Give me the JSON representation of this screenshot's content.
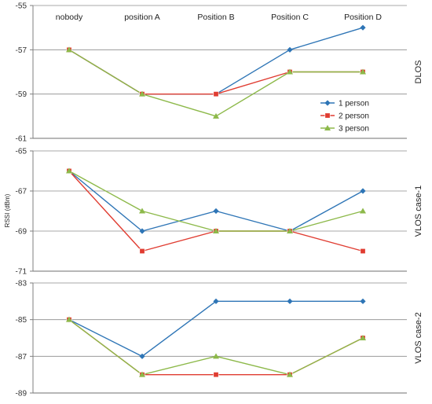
{
  "chart_data": {
    "type": "line",
    "categories": [
      "nobody",
      "position A",
      "Position B",
      "Position C",
      "Position D"
    ],
    "ylabel": "RSSI (dBm)",
    "legend": {
      "placement": "inside-top-right-of-first-panel",
      "entries": [
        "1 person",
        "2 person",
        "3 person"
      ]
    },
    "colors": {
      "1 person": "#2e75b6",
      "2 person": "#e03c31",
      "3 person": "#8db94a",
      "gridline": "#8c8c8c",
      "axis": "#7f7f7f"
    },
    "panels": [
      {
        "label": "DLOS",
        "ylim": [
          -61,
          -55
        ],
        "yticks": [
          -55,
          -57,
          -59,
          -61
        ],
        "series": [
          {
            "name": "1 person",
            "marker": "diamond",
            "values": [
              -57,
              -59,
              -59,
              -57,
              -56
            ]
          },
          {
            "name": "2 person",
            "marker": "square",
            "values": [
              -57,
              -59,
              -59,
              -58,
              -58
            ]
          },
          {
            "name": "3 person",
            "marker": "triangle",
            "values": [
              -57,
              -59,
              -60,
              -58,
              -58
            ]
          }
        ]
      },
      {
        "label": "VLOS case-1",
        "ylim": [
          -71,
          -65
        ],
        "yticks": [
          -65,
          -67,
          -69,
          -71
        ],
        "series": [
          {
            "name": "1 person",
            "marker": "diamond",
            "values": [
              -66,
              -69,
              -68,
              -69,
              -67
            ]
          },
          {
            "name": "2 person",
            "marker": "square",
            "values": [
              -66,
              -70,
              -69,
              -69,
              -70
            ]
          },
          {
            "name": "3 person",
            "marker": "triangle",
            "values": [
              -66,
              -68,
              -69,
              -69,
              -68
            ]
          }
        ]
      },
      {
        "label": "VLOS case-2",
        "ylim": [
          -89,
          -83
        ],
        "yticks": [
          -83,
          -85,
          -87,
          -89
        ],
        "series": [
          {
            "name": "1 person",
            "marker": "diamond",
            "values": [
              -85,
              -87,
              -84,
              -84,
              -84
            ]
          },
          {
            "name": "2 person",
            "marker": "square",
            "values": [
              -85,
              -88,
              -88,
              -88,
              -86
            ]
          },
          {
            "name": "3 person",
            "marker": "triangle",
            "values": [
              -85,
              -88,
              -87,
              -88,
              -86
            ]
          }
        ]
      }
    ]
  }
}
